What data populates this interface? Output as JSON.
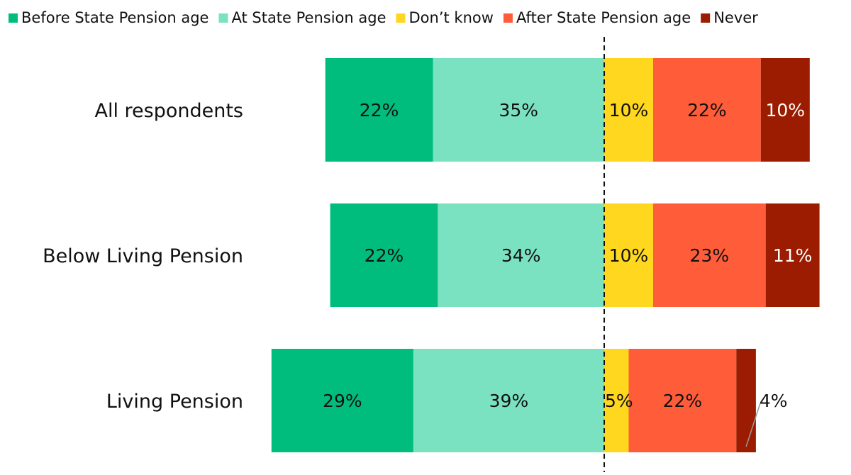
{
  "chart_data": {
    "type": "bar",
    "orientation": "horizontal",
    "stacked": true,
    "diverging": true,
    "categories": [
      "All respondents",
      "Below Living Pension",
      "Living Pension"
    ],
    "series": [
      {
        "name": "Before State Pension age",
        "values": [
          22,
          22,
          29
        ],
        "labels": [
          "22%",
          "22%",
          "29%"
        ],
        "color": "#00BD7E"
      },
      {
        "name": "At State Pension age",
        "values": [
          35,
          34,
          39
        ],
        "labels": [
          "35%",
          "34%",
          "39%"
        ],
        "color": "#7BE2C1"
      },
      {
        "name": "Don't know",
        "values": [
          10,
          10,
          5
        ],
        "labels": [
          "10%",
          "10%",
          "5%"
        ],
        "color": "#FFD71E"
      },
      {
        "name": "After State Pension age",
        "values": [
          22,
          23,
          22
        ],
        "labels": [
          "22%",
          "23%",
          "22%"
        ],
        "color": "#FF5C3A"
      },
      {
        "name": "Never",
        "values": [
          10,
          11,
          4
        ],
        "labels": [
          "10%",
          "11%",
          "4%"
        ],
        "color": "#9B1C00"
      }
    ],
    "legend_names": [
      "Before State Pension age",
      "At State Pension age",
      "Don’t know",
      "After State Pension age",
      "Never"
    ],
    "legend_position": "top",
    "grid": false
  }
}
